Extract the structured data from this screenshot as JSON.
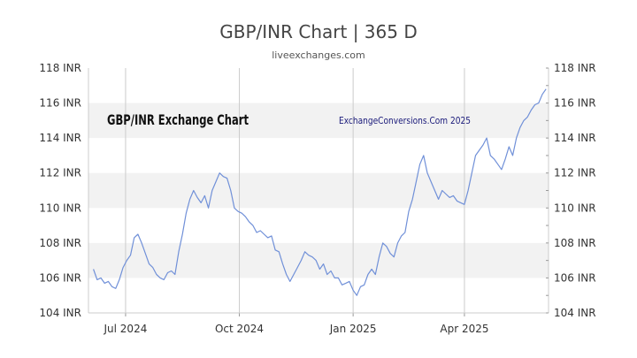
{
  "chart_data": {
    "type": "line",
    "title": "GBP/INR Chart | 365 D",
    "subtitle": "liveexchanges.com",
    "y_ticks": [
      "104 INR",
      "106 INR",
      "108 INR",
      "110 INR",
      "112 INR",
      "114 INR",
      "116 INR",
      "118 INR"
    ],
    "y_tick_values": [
      104,
      106,
      108,
      110,
      112,
      114,
      116,
      118
    ],
    "ylim": [
      104,
      118
    ],
    "x_ticks": [
      "Jul 2024",
      "Oct 2024",
      "Jan 2025",
      "Apr 2025"
    ],
    "x_tick_dates": [
      "2024-07-01",
      "2024-10-01",
      "2025-01-01",
      "2025-04-01"
    ],
    "xlim": [
      "2024-06-01",
      "2025-06-08"
    ],
    "grid": "vertical lines at x ticks, alternating horizontal bands",
    "legend": "none",
    "annotations": [
      "GBP/INR Exchange Chart",
      "ExchangeConversions.Com 2025"
    ],
    "line_color": "#7090d8",
    "band_color": "#f2f2f2",
    "series": [
      {
        "x": [
          "2024-06-05",
          "2024-06-08",
          "2024-06-11",
          "2024-06-14",
          "2024-06-17",
          "2024-06-20",
          "2024-06-23",
          "2024-06-26",
          "2024-06-29",
          "2024-07-02",
          "2024-07-05",
          "2024-07-08",
          "2024-07-11",
          "2024-07-14",
          "2024-07-17",
          "2024-07-20",
          "2024-07-23",
          "2024-07-26",
          "2024-07-29",
          "2024-08-01",
          "2024-08-04",
          "2024-08-07",
          "2024-08-10",
          "2024-08-13",
          "2024-08-16",
          "2024-08-19",
          "2024-08-22",
          "2024-08-25",
          "2024-08-28",
          "2024-08-31",
          "2024-09-03",
          "2024-09-06",
          "2024-09-09",
          "2024-09-12",
          "2024-09-15",
          "2024-09-18",
          "2024-09-21",
          "2024-09-24",
          "2024-09-27",
          "2024-09-30",
          "2024-10-03",
          "2024-10-06",
          "2024-10-09",
          "2024-10-12",
          "2024-10-15",
          "2024-10-18",
          "2024-10-21",
          "2024-10-24",
          "2024-10-27",
          "2024-10-30",
          "2024-11-02",
          "2024-11-05",
          "2024-11-08",
          "2024-11-11",
          "2024-11-14",
          "2024-11-17",
          "2024-11-20",
          "2024-11-23",
          "2024-11-26",
          "2024-11-29",
          "2024-12-02",
          "2024-12-05",
          "2024-12-08",
          "2024-12-11",
          "2024-12-14",
          "2024-12-17",
          "2024-12-20",
          "2024-12-23",
          "2024-12-26",
          "2024-12-29",
          "2025-01-01",
          "2025-01-04",
          "2025-01-07",
          "2025-01-10",
          "2025-01-13",
          "2025-01-16",
          "2025-01-19",
          "2025-01-22",
          "2025-01-25",
          "2025-01-28",
          "2025-01-31",
          "2025-02-03",
          "2025-02-06",
          "2025-02-09",
          "2025-02-12",
          "2025-02-15",
          "2025-02-18",
          "2025-02-21",
          "2025-02-24",
          "2025-02-27",
          "2025-03-02",
          "2025-03-05",
          "2025-03-08",
          "2025-03-11",
          "2025-03-14",
          "2025-03-17",
          "2025-03-20",
          "2025-03-23",
          "2025-03-26",
          "2025-03-29",
          "2025-04-01",
          "2025-04-04",
          "2025-04-07",
          "2025-04-10",
          "2025-04-13",
          "2025-04-16",
          "2025-04-19",
          "2025-04-22",
          "2025-04-25",
          "2025-04-28",
          "2025-05-01",
          "2025-05-04",
          "2025-05-07",
          "2025-05-10",
          "2025-05-13",
          "2025-05-16",
          "2025-05-19",
          "2025-05-22",
          "2025-05-25",
          "2025-05-28",
          "2025-05-31",
          "2025-06-03",
          "2025-06-06"
        ],
        "y": [
          106.5,
          105.9,
          106.0,
          105.7,
          105.8,
          105.5,
          105.4,
          105.9,
          106.6,
          107.0,
          107.3,
          108.3,
          108.5,
          108.0,
          107.4,
          106.8,
          106.6,
          106.2,
          106.0,
          105.9,
          106.3,
          106.4,
          106.2,
          107.5,
          108.5,
          109.7,
          110.5,
          111.0,
          110.6,
          110.3,
          110.7,
          110.0,
          111.0,
          111.5,
          112.0,
          111.8,
          111.7,
          111.0,
          110.0,
          109.8,
          109.7,
          109.5,
          109.2,
          109.0,
          108.6,
          108.7,
          108.5,
          108.3,
          108.4,
          107.6,
          107.5,
          106.8,
          106.2,
          105.8,
          106.2,
          106.6,
          107.0,
          107.5,
          107.3,
          107.2,
          107.0,
          106.5,
          106.8,
          106.2,
          106.4,
          106.0,
          106.0,
          105.6,
          105.7,
          105.8,
          105.3,
          105.0,
          105.5,
          105.6,
          106.2,
          106.5,
          106.2,
          107.2,
          108.0,
          107.8,
          107.4,
          107.2,
          108.0,
          108.4,
          108.6,
          109.8,
          110.5,
          111.5,
          112.5,
          113.0,
          112.0,
          111.5,
          111.0,
          110.5,
          111.0,
          110.8,
          110.6,
          110.7,
          110.4,
          110.3,
          110.2,
          111.0,
          112.0,
          113.0,
          113.3,
          113.6,
          114.0,
          113.0,
          112.8,
          112.5,
          112.2,
          112.8,
          113.5,
          113.0,
          114.0,
          114.6,
          115.0,
          115.2,
          115.6,
          115.9,
          116.0,
          116.5,
          116.8
        ]
      }
    ]
  }
}
